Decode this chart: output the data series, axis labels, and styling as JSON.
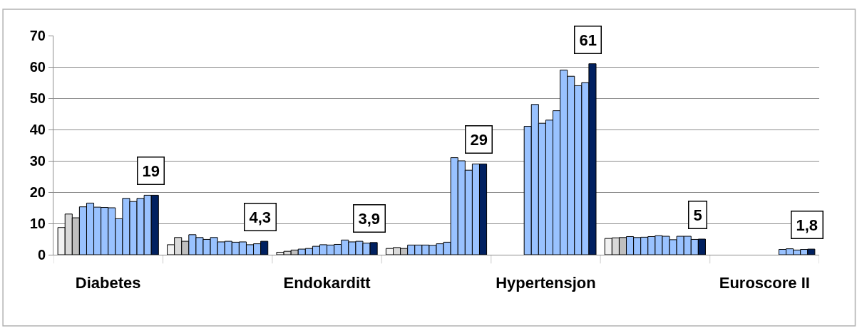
{
  "chart_data": {
    "type": "bar",
    "categories": [
      "Diabetes",
      null,
      "Endokarditt",
      null,
      "Hypertensjon",
      null,
      "Euroscore II"
    ],
    "series": [
      {
        "color": "#f2f2f2",
        "values": [
          8.7,
          3.2,
          0.8,
          2.0,
          null,
          5.2,
          null
        ]
      },
      {
        "color": "#d9d9d9",
        "values": [
          13,
          5.5,
          1.1,
          2.3,
          null,
          5.4,
          null
        ]
      },
      {
        "color": "#bfbfbf",
        "values": [
          11.8,
          4.3,
          1.5,
          2.0,
          null,
          5.5,
          null
        ]
      },
      {
        "color": "#99c2ff",
        "values": [
          15.3,
          6.4,
          1.8,
          3.1,
          null,
          5.8,
          null
        ]
      },
      {
        "color": "#99c2ff",
        "values": [
          16.5,
          5.5,
          2.0,
          3.1,
          41,
          5.5,
          null
        ]
      },
      {
        "color": "#99c2ff",
        "values": [
          15.2,
          4.9,
          2.7,
          3.1,
          48,
          5.6,
          null
        ]
      },
      {
        "color": "#99c2ff",
        "values": [
          15.1,
          5.5,
          3.2,
          3.0,
          42,
          5.8,
          null
        ]
      },
      {
        "color": "#99c2ff",
        "values": [
          15,
          4.1,
          3.1,
          3.5,
          43,
          6.1,
          null
        ]
      },
      {
        "color": "#99c2ff",
        "values": [
          11.5,
          4.3,
          3.3,
          4.0,
          46,
          5.9,
          null
        ]
      },
      {
        "color": "#99c2ff",
        "values": [
          18,
          4.0,
          4.7,
          31,
          59,
          4.8,
          1.7
        ]
      },
      {
        "color": "#99c2ff",
        "values": [
          17,
          4.1,
          4.1,
          30,
          57,
          5.9,
          1.9
        ]
      },
      {
        "color": "#99c2ff",
        "values": [
          18,
          3.2,
          4.3,
          27,
          54,
          5.9,
          1.5
        ]
      },
      {
        "color": "#99c2ff",
        "values": [
          19,
          3.5,
          3.7,
          29,
          55,
          4.9,
          1.7
        ]
      },
      {
        "color": "#002060",
        "values": [
          19,
          4.3,
          3.9,
          29,
          61,
          5,
          1.8
        ],
        "value_labels": [
          "19",
          "4,3",
          "3,9",
          "29",
          "61",
          "5",
          "1,8"
        ]
      }
    ],
    "ylim": [
      0,
      70
    ],
    "yticks": [
      0,
      10,
      20,
      30,
      40,
      50,
      60,
      70
    ],
    "grid": "y"
  }
}
